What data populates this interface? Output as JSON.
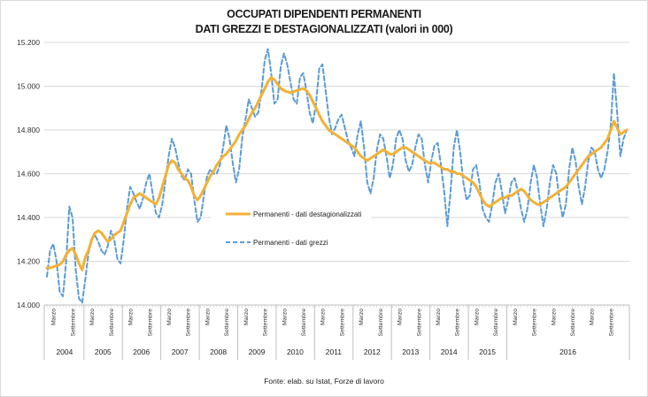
{
  "chart_data": {
    "type": "line",
    "title": "OCCUPATI DIPENDENTI PERMANENTI",
    "subtitle": "DATI GREZZI E DESTAGIONALIZZATI (valori in 000)",
    "xlabel": "",
    "ylabel": "",
    "ylim": [
      14000,
      15200
    ],
    "yticks": [
      "14.000",
      "14.200",
      "14.400",
      "14.600",
      "14.800",
      "15.000",
      "15.200"
    ],
    "grid": true,
    "legend": "inside-center-left",
    "source": "Fonte: elab. su Istat, Forze di lavoro",
    "years": [
      "2004",
      "2005",
      "2006",
      "2007",
      "2008",
      "2009",
      "2010",
      "2011",
      "2012",
      "2013",
      "2014",
      "2015",
      "2016"
    ],
    "month_labels": {
      "march": "Marzo",
      "september": "Settembre"
    },
    "start": "2004-01",
    "series": [
      {
        "name": "Permanenti - dati destagionalizzati",
        "color": "#f2b134",
        "style": "solid",
        "values": [
          14170,
          14170,
          14175,
          14180,
          14185,
          14200,
          14230,
          14250,
          14260,
          14230,
          14190,
          14160,
          14220,
          14250,
          14300,
          14330,
          14340,
          14330,
          14310,
          14290,
          14300,
          14320,
          14330,
          14340,
          14380,
          14420,
          14460,
          14490,
          14500,
          14510,
          14500,
          14490,
          14480,
          14470,
          14460,
          14490,
          14540,
          14590,
          14640,
          14660,
          14650,
          14620,
          14600,
          14580,
          14570,
          14540,
          14500,
          14480,
          14500,
          14530,
          14560,
          14590,
          14610,
          14640,
          14660,
          14680,
          14690,
          14710,
          14730,
          14750,
          14780,
          14800,
          14820,
          14850,
          14880,
          14900,
          14930,
          14960,
          14990,
          15020,
          15040,
          15030,
          15010,
          14990,
          14980,
          14975,
          14970,
          14975,
          14980,
          14985,
          14990,
          14980,
          14960,
          14930,
          14900,
          14870,
          14840,
          14820,
          14800,
          14790,
          14780,
          14770,
          14760,
          14750,
          14740,
          14730,
          14720,
          14700,
          14680,
          14670,
          14660,
          14670,
          14680,
          14690,
          14700,
          14710,
          14700,
          14690,
          14690,
          14700,
          14710,
          14720,
          14720,
          14710,
          14700,
          14690,
          14680,
          14670,
          14660,
          14650,
          14650,
          14650,
          14640,
          14630,
          14620,
          14620,
          14610,
          14610,
          14600,
          14600,
          14590,
          14580,
          14570,
          14560,
          14540,
          14510,
          14480,
          14460,
          14450,
          14460,
          14470,
          14480,
          14490,
          14490,
          14500,
          14500,
          14510,
          14520,
          14530,
          14520,
          14500,
          14480,
          14470,
          14460,
          14460,
          14470,
          14480,
          14490,
          14500,
          14510,
          14520,
          14530,
          14540,
          14560,
          14580,
          14600,
          14620,
          14640,
          14660,
          14680,
          14690,
          14700,
          14710,
          14720,
          14740,
          14760,
          14800,
          14840,
          14810,
          14780,
          14790,
          14800
        ]
      },
      {
        "name": "Permanenti - dati grezzi",
        "color": "#5b9bd5",
        "style": "dashed",
        "values": [
          14130,
          14250,
          14280,
          14200,
          14060,
          14040,
          14200,
          14450,
          14400,
          14160,
          14030,
          14010,
          14120,
          14240,
          14300,
          14320,
          14290,
          14250,
          14230,
          14270,
          14340,
          14300,
          14210,
          14190,
          14300,
          14440,
          14540,
          14510,
          14470,
          14440,
          14490,
          14560,
          14600,
          14510,
          14420,
          14400,
          14460,
          14570,
          14680,
          14760,
          14720,
          14650,
          14590,
          14570,
          14620,
          14600,
          14480,
          14380,
          14400,
          14500,
          14590,
          14620,
          14600,
          14600,
          14640,
          14720,
          14820,
          14760,
          14650,
          14560,
          14620,
          14770,
          14850,
          14940,
          14900,
          14860,
          14880,
          14980,
          15120,
          15170,
          15060,
          14920,
          14940,
          15090,
          15150,
          15100,
          15020,
          14940,
          14920,
          15040,
          15060,
          14980,
          14880,
          14830,
          14920,
          15080,
          15100,
          14980,
          14860,
          14780,
          14810,
          14850,
          14870,
          14810,
          14750,
          14720,
          14680,
          14780,
          14840,
          14720,
          14560,
          14510,
          14580,
          14710,
          14780,
          14760,
          14680,
          14580,
          14640,
          14760,
          14800,
          14760,
          14660,
          14610,
          14640,
          14720,
          14780,
          14760,
          14640,
          14560,
          14660,
          14730,
          14740,
          14640,
          14520,
          14360,
          14520,
          14720,
          14800,
          14700,
          14560,
          14480,
          14500,
          14620,
          14640,
          14560,
          14440,
          14400,
          14380,
          14460,
          14560,
          14600,
          14520,
          14420,
          14480,
          14560,
          14580,
          14520,
          14440,
          14380,
          14440,
          14560,
          14640,
          14580,
          14460,
          14360,
          14440,
          14560,
          14640,
          14600,
          14480,
          14400,
          14460,
          14620,
          14720,
          14660,
          14540,
          14460,
          14540,
          14660,
          14720,
          14700,
          14620,
          14580,
          14620,
          14700,
          14820,
          15060,
          14880,
          14680,
          14760,
          14800
        ]
      }
    ]
  }
}
